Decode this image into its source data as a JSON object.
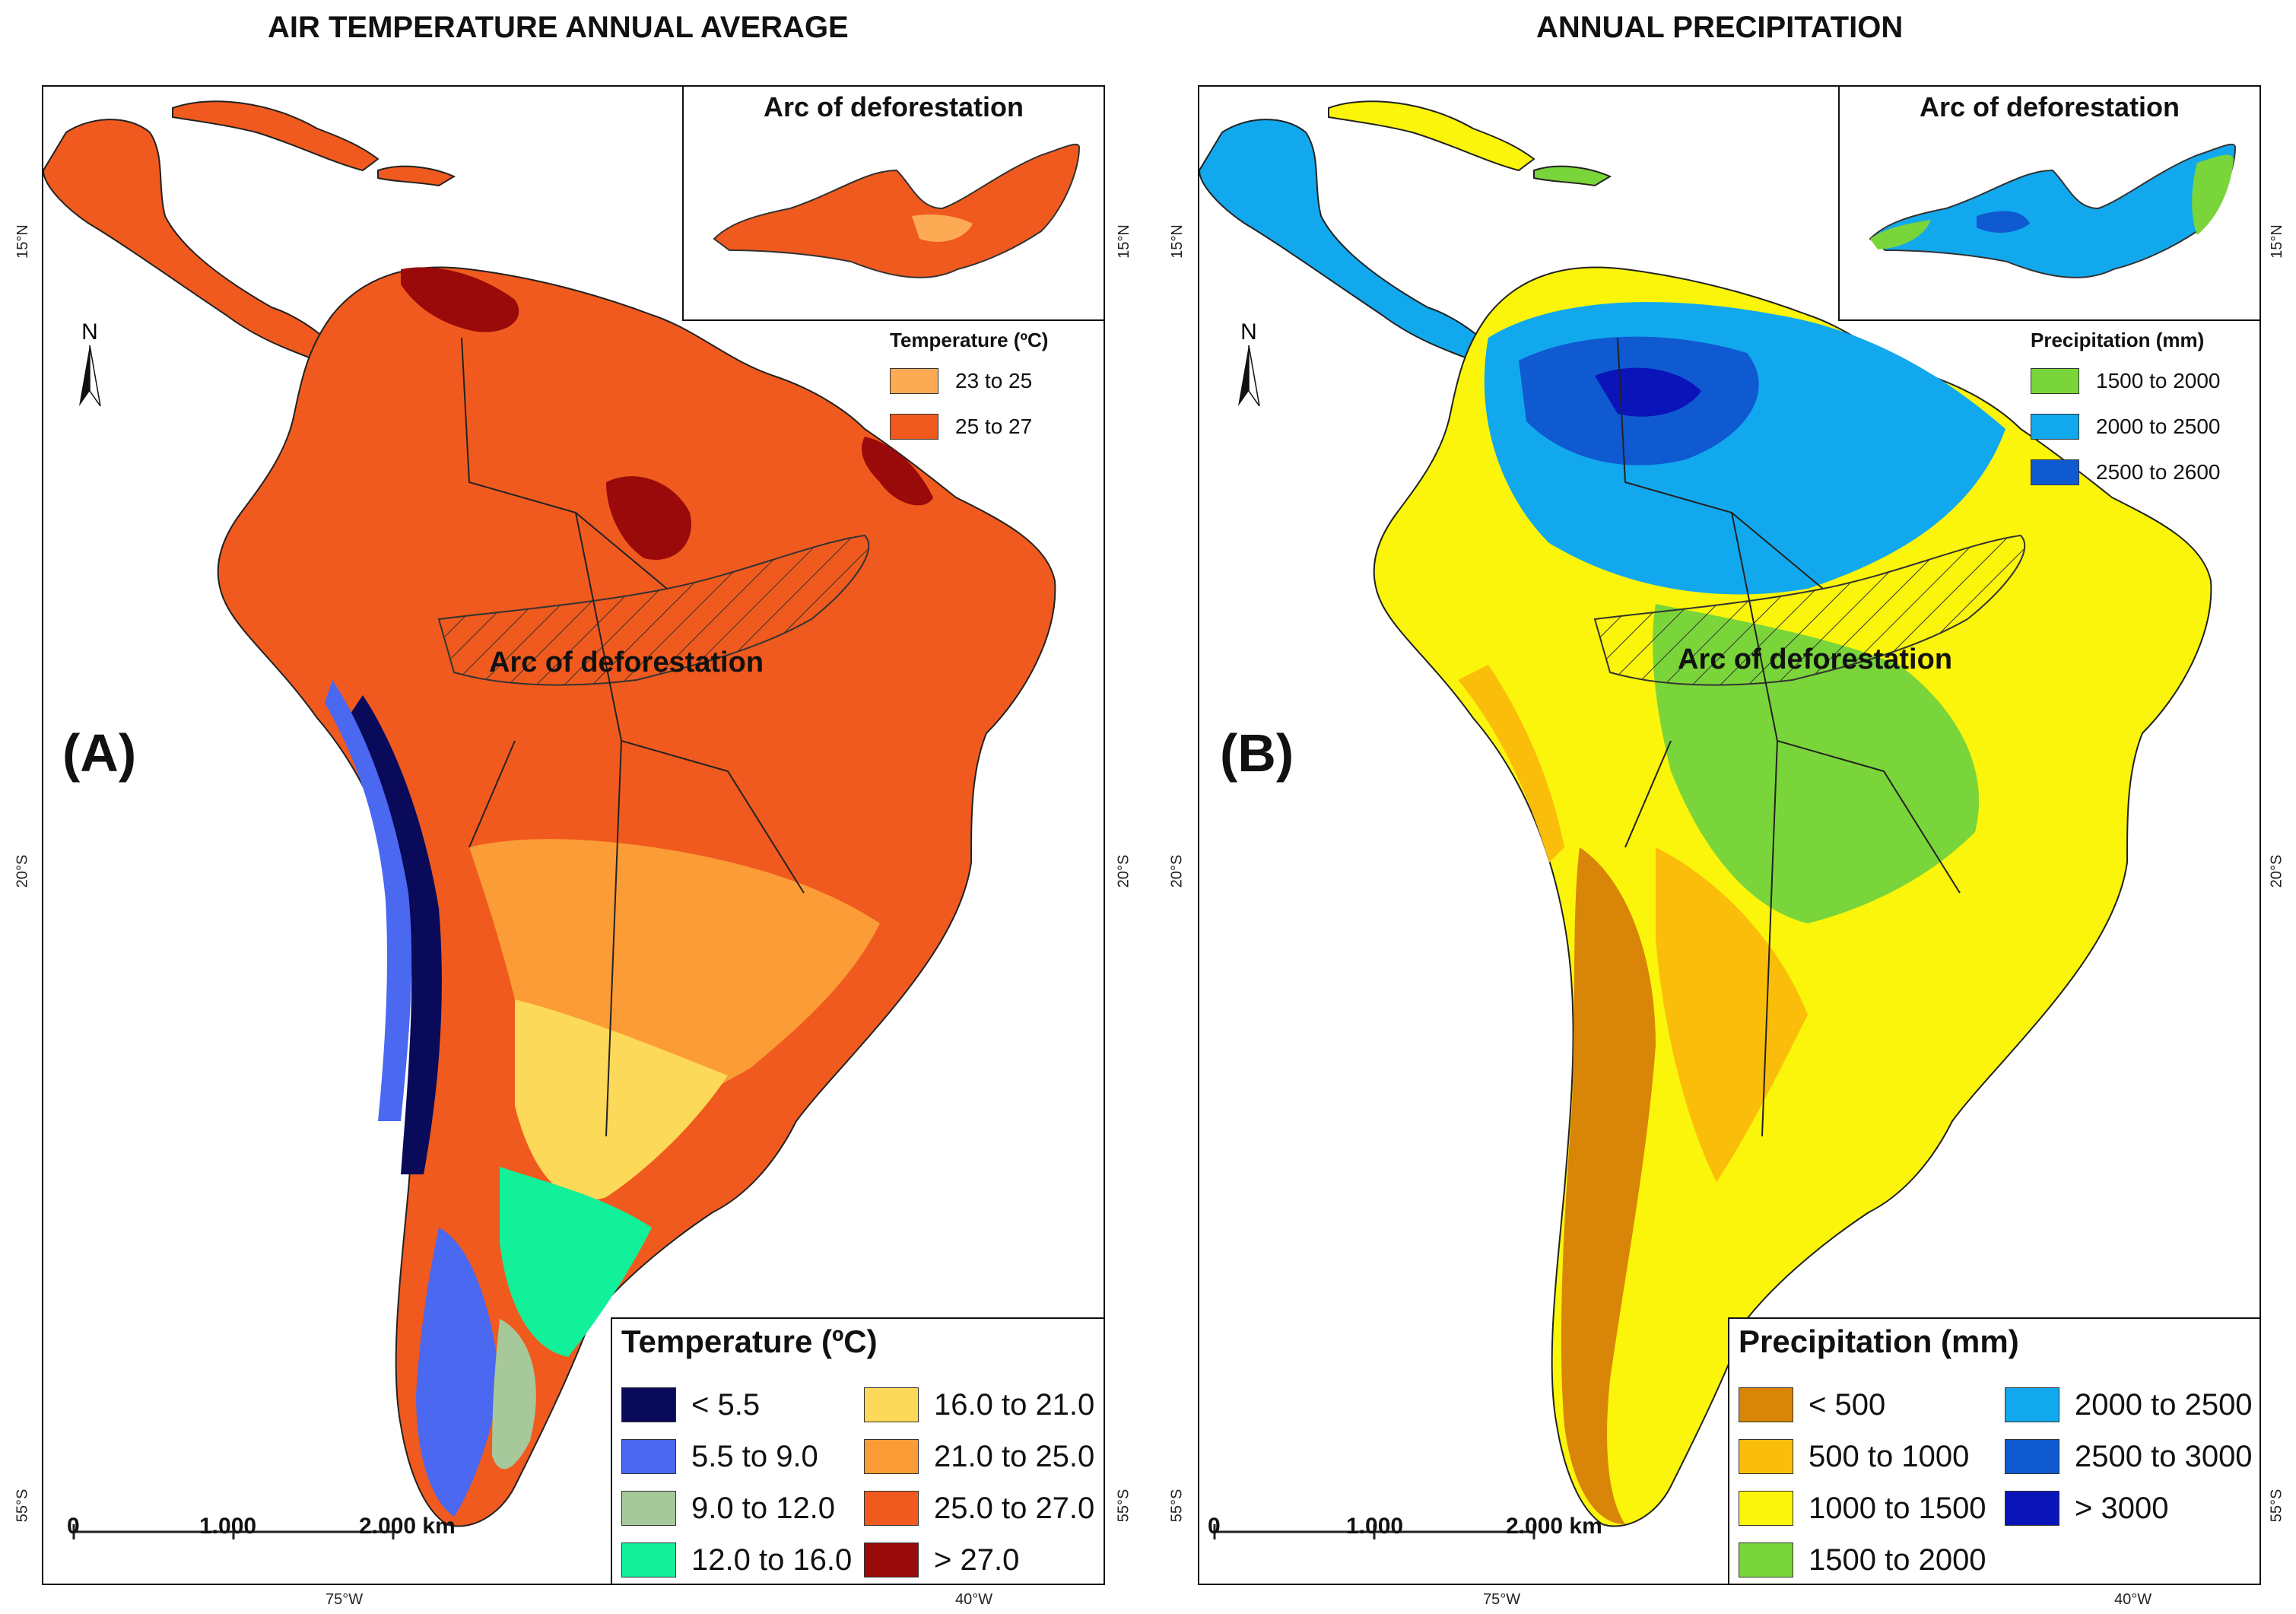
{
  "panels": [
    {
      "id": "A",
      "title": "AIR TEMPERATURE ANNUAL AVERAGE",
      "panel_label": "(A)",
      "arc_label": "Arc of deforestation",
      "inset": {
        "title": "Arc of deforestation",
        "legend_title": "Temperature (ºC)",
        "items": [
          {
            "label": "23 to 25",
            "color": "#FDAA55"
          },
          {
            "label": "25 to 27",
            "color": "#F05A1E"
          }
        ]
      },
      "legend": {
        "title": "Temperature (ºC)",
        "items": [
          {
            "label": "< 5.5",
            "color": "#0A0A5A"
          },
          {
            "label": "5.5 to 9.0",
            "color": "#4A68F0"
          },
          {
            "label": "9.0 to 12.0",
            "color": "#A6C89A"
          },
          {
            "label": "12.0 to 16.0",
            "color": "#12F09A"
          },
          {
            "label": "16.0 to 21.0",
            "color": "#FCD958"
          },
          {
            "label": "21.0 to 25.0",
            "color": "#FB9C36"
          },
          {
            "label": "25.0 to 27.0",
            "color": "#F05A1E"
          },
          {
            "label": "> 27.0",
            "color": "#9A0A0A"
          }
        ]
      },
      "scale": {
        "labels": [
          "0",
          "1.000",
          "2.000 km"
        ]
      },
      "axis": {
        "lat_left": [
          "15°N",
          "20°S",
          "55°S"
        ],
        "lat_right": [
          "15°N",
          "20°S",
          "55°S"
        ],
        "lon": [
          "75°W",
          "40°W"
        ]
      },
      "north": "N"
    },
    {
      "id": "B",
      "title": "ANNUAL PRECIPITATION",
      "panel_label": "(B)",
      "arc_label": "Arc of deforestation",
      "inset": {
        "title": "Arc of deforestation",
        "legend_title": "Precipitation (mm)",
        "items": [
          {
            "label": "1500 to 2000",
            "color": "#7AD53A"
          },
          {
            "label": "2000 to 2500",
            "color": "#12A8EE"
          },
          {
            "label": "2500 to 2600",
            "color": "#0F5AD0"
          }
        ]
      },
      "legend": {
        "title": "Precipitation (mm)",
        "items": [
          {
            "label": "< 500",
            "color": "#D98508"
          },
          {
            "label": "500 to 1000",
            "color": "#FABE0A"
          },
          {
            "label": "1000 to 1500",
            "color": "#FAF50A"
          },
          {
            "label": "1500 to 2000",
            "color": "#7AD53A"
          },
          {
            "label": "2000 to 2500",
            "color": "#12A8EE"
          },
          {
            "label": "2500 to 3000",
            "color": "#0F5AD0"
          },
          {
            "label": "> 3000",
            "color": "#0A14B8"
          }
        ]
      },
      "scale": {
        "labels": [
          "0",
          "1.000",
          "2.000 km"
        ]
      },
      "axis": {
        "lat_left": [
          "15°N",
          "20°S",
          "55°S"
        ],
        "lat_right": [
          "15°N",
          "20°S",
          "55°S"
        ],
        "lon": [
          "75°W",
          "40°W"
        ]
      },
      "north": "N"
    }
  ]
}
